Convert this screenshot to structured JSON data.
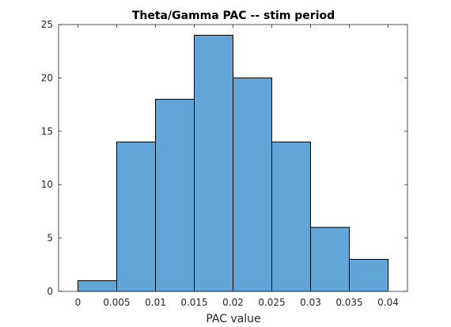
{
  "chart_data": {
    "type": "bar",
    "subtype": "histogram",
    "title": "Theta/Gamma PAC -- stim period",
    "xlabel": "PAC value",
    "ylabel": "",
    "bin_edges": [
      0,
      0.005,
      0.01,
      0.015,
      0.02,
      0.025,
      0.03,
      0.035,
      0.04
    ],
    "values": [
      1,
      14,
      18,
      24,
      20,
      14,
      6,
      3
    ],
    "xlim": [
      -0.0025,
      0.0425
    ],
    "ylim": [
      0,
      25
    ],
    "x_ticks": [
      0,
      0.005,
      0.01,
      0.015,
      0.02,
      0.025,
      0.03,
      0.035,
      0.04
    ],
    "x_tick_labels": [
      "0",
      "0.005",
      "0.01",
      "0.015",
      "0.02",
      "0.025",
      "0.03",
      "0.035",
      "0.04"
    ],
    "y_ticks": [
      0,
      5,
      10,
      15,
      20,
      25
    ],
    "y_tick_labels": [
      "0",
      "5",
      "10",
      "15",
      "20",
      "25"
    ],
    "grid": false,
    "colors": {
      "bar_fill": "#61a6d8",
      "bar_edge": "#000000",
      "axis": "#262626"
    }
  }
}
